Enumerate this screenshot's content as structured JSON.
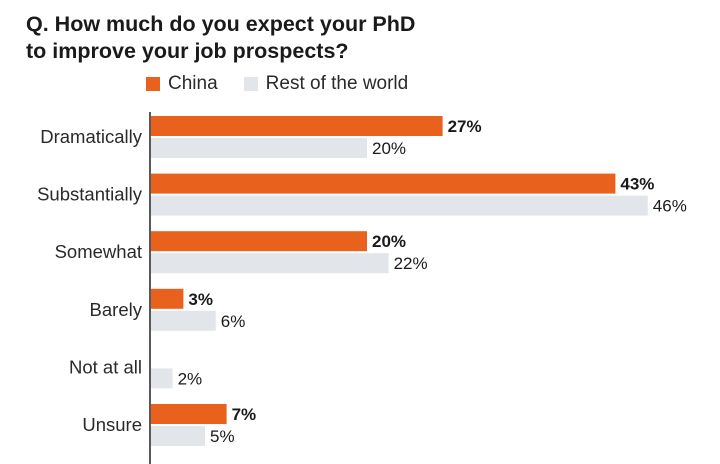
{
  "title_line1": "Q. How much do you expect your PhD",
  "title_line2": "to improve your job prospects?",
  "colors": {
    "china": "#e8611d",
    "rest": "#e2e6ea",
    "axis": "#222222"
  },
  "chart_data": {
    "type": "bar",
    "orientation": "horizontal",
    "title": "Q. How much do you expect your PhD to improve your job prospects?",
    "categories": [
      "Dramatically",
      "Substantially",
      "Somewhat",
      "Barely",
      "Not at all",
      "Unsure"
    ],
    "series": [
      {
        "name": "China",
        "values": [
          27,
          43,
          20,
          3,
          0,
          7
        ],
        "labels": [
          "27%",
          "43%",
          "20%",
          "3%",
          "",
          "7%"
        ]
      },
      {
        "name": "Rest of the world",
        "values": [
          20,
          46,
          22,
          6,
          2,
          5
        ],
        "labels": [
          "20%",
          "46%",
          "22%",
          "6%",
          "2%",
          "5%"
        ]
      }
    ],
    "legend_position": "top-left",
    "grid": false
  }
}
